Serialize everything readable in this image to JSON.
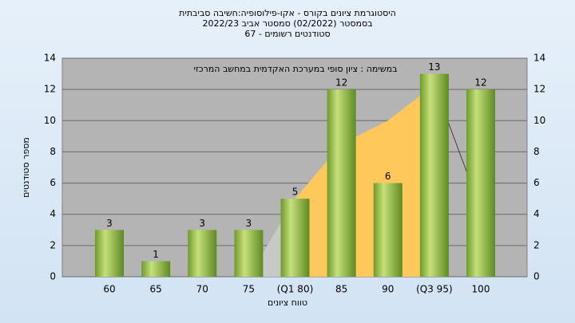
{
  "chart_data": {
    "type": "bar",
    "title_lines": [
      "היסטוגרמת ציונים בקורס - אקו-פילוסופיה:חשיבה סביבתית",
      "בסמסטר  (02/2022)  סמסטר אביב 2022/23",
      "סטודנטים רשומים - 67"
    ],
    "annotation": "במשימה : ציון סופי במערכת האקדמית במחשב המרכזי",
    "x_label": "טווח ציונים",
    "y_label": "מספר סטודנטים",
    "categories": [
      "60",
      "65",
      "70",
      "75",
      "(Q1 80)",
      "85",
      "90",
      "(Q3 95)",
      "100"
    ],
    "values": [
      3,
      1,
      3,
      3,
      5,
      12,
      6,
      13,
      12
    ],
    "color": "#8db83a",
    "overlay_values": [
      null,
      null,
      null,
      0,
      5,
      8.5,
      10,
      12.3,
      4.3
    ],
    "overlay_colors": [
      "#c8c8c8",
      "#ffc85a",
      "#404040"
    ],
    "ylim": [
      0,
      14
    ],
    "yticks": [
      0,
      2,
      4,
      6,
      8,
      10,
      12,
      14
    ],
    "grid": true
  }
}
